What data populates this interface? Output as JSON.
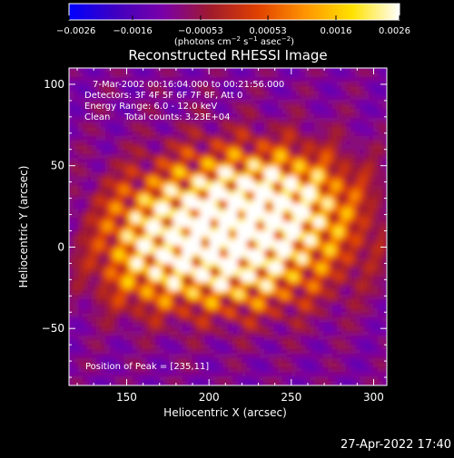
{
  "chart_data": {
    "type": "heatmap",
    "title": "Reconstructed RHESSI Image",
    "xlabel": "Heliocentric X (arcsec)",
    "ylabel": "Heliocentric Y (arcsec)",
    "xlim": [
      115,
      308
    ],
    "ylim": [
      -85,
      110
    ],
    "x_ticks": [
      150,
      200,
      250,
      300
    ],
    "x_tick_labels": [
      "150",
      "200",
      "250",
      "300"
    ],
    "y_ticks": [
      -50,
      0,
      50,
      100
    ],
    "y_tick_labels": [
      "−50",
      "0",
      "50",
      "100"
    ],
    "colorbar": {
      "min": -0.0026,
      "max": 0.0026,
      "tick_values": [
        -0.0026,
        -0.0016,
        -0.00053,
        0.00053,
        0.0016,
        0.0026
      ],
      "tick_labels": [
        "−0.0026",
        "−0.0016",
        "−0.00053",
        "0.00053",
        "0.0016",
        "0.0026"
      ],
      "unit_label_parts": [
        "(photons cm",
        "−2",
        " s",
        "−1",
        " asec",
        "−2",
        ")"
      ],
      "colors": [
        "#0000ff",
        "#4000c0",
        "#7a00a8",
        "#a01a2c",
        "#e04000",
        "#ff9400",
        "#ffe200",
        "#ffffff"
      ]
    },
    "annotations": [
      "7-Mar-2002 00:16:04.000 to 00:21:56.000",
      "Detectors: 3F 4F 5F 6F 7F 8F, Att 0",
      "Energy Range: 6.0 - 12.0 keV",
      "Clean     Total counts: 3.23E+04"
    ],
    "peak_label": "Position of Peak = [235,11]",
    "peak": {
      "x": 235,
      "y": 11
    },
    "grid": false,
    "legend": "none"
  },
  "timestamp": "27-Apr-2022 17:40"
}
